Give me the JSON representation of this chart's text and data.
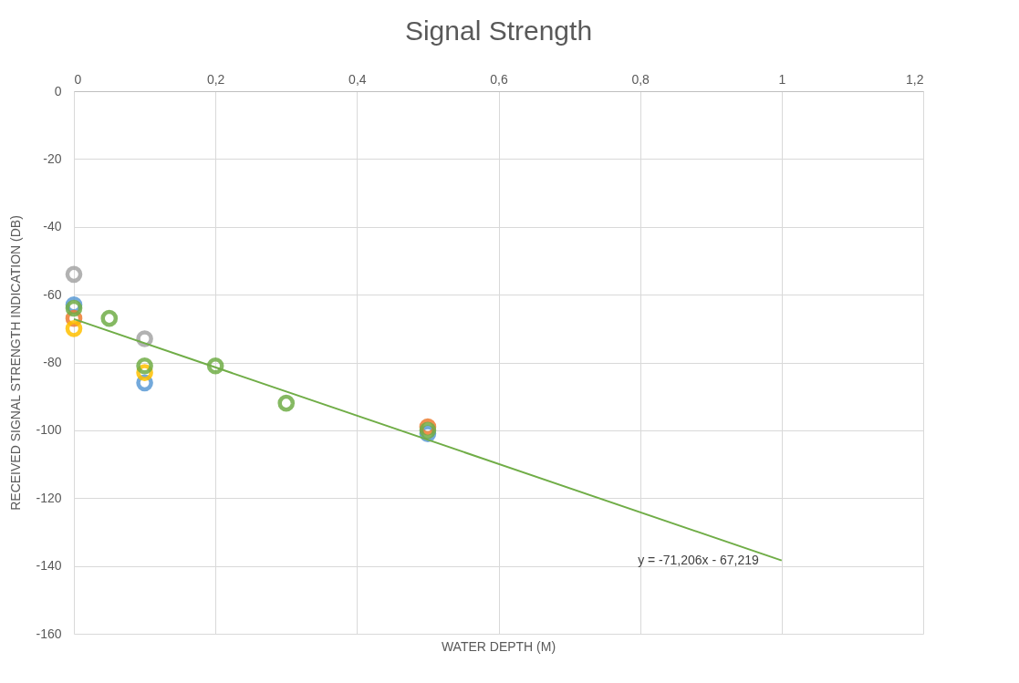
{
  "chart_data": {
    "type": "scatter",
    "title": "Signal Strength",
    "xlabel": "WATER DEPTH (M)",
    "ylabel": "RECEIVED SIGNAL STRENGTH INDICATION (DB)",
    "series": [
      {
        "color": "#5b9bd5",
        "x": [
          0,
          0.1,
          0.5
        ],
        "values": [
          -63,
          -86,
          -101
        ]
      },
      {
        "color": "#ed7d31",
        "x": [
          0,
          0.5
        ],
        "values": [
          -67,
          -99
        ]
      },
      {
        "color": "#a5a5a5",
        "x": [
          0,
          0.1
        ],
        "values": [
          -54,
          -73
        ]
      },
      {
        "color": "#ffc000",
        "x": [
          0,
          0.1
        ],
        "values": [
          -70,
          -83
        ]
      },
      {
        "color": "#70ad47",
        "x": [
          0,
          0.05,
          0.1,
          0.2,
          0.3,
          0.5
        ],
        "values": [
          -64,
          -67,
          -81,
          -81,
          -92,
          -100
        ]
      },
      {
        "type": "line",
        "marker": "none",
        "color": "#70ad47",
        "x": [
          0,
          1
        ],
        "values": [
          -67.2,
          -138.4
        ]
      }
    ],
    "annotations": [
      "y = -71,206x - 67,219"
    ],
    "xlim": [
      0,
      1.2
    ],
    "xticks": [
      0,
      {
        "value": 0.2,
        "label": "0,2"
      },
      {
        "value": 0.4,
        "label": "0,4"
      },
      {
        "value": 0.6,
        "label": "0,6"
      },
      {
        "value": 0.8,
        "label": "0,8"
      },
      1,
      {
        "value": 1.2,
        "label": "1,2"
      }
    ],
    "ylim": [
      -160,
      0
    ],
    "yticks": [
      -160,
      -140,
      -120,
      -100,
      -80,
      -60,
      -40,
      -20,
      0
    ],
    "grid": true,
    "marker": "circle",
    "tick_labels": true
  }
}
